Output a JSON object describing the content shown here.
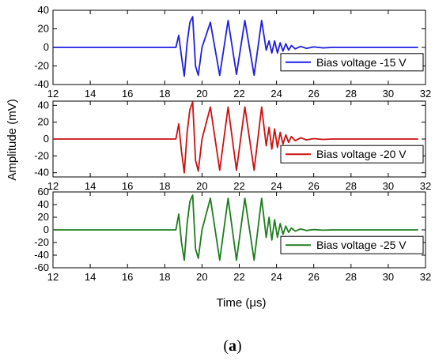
{
  "figure": {
    "caption_open": "(",
    "caption_letter": "a",
    "caption_close": ")",
    "shared_ylabel": "Amplitude (mV)",
    "shared_xlabel": "Time (μs)"
  },
  "chart_data": [
    {
      "type": "line",
      "xlim": [
        12,
        32
      ],
      "ylim": [
        -40,
        40
      ],
      "xticks": [
        12,
        14,
        16,
        18,
        20,
        22,
        24,
        26,
        28,
        30,
        32
      ],
      "yticks": [
        -40,
        -20,
        0,
        20,
        40
      ],
      "grid": false,
      "legend_position": "right",
      "series": [
        {
          "name": "Bias voltage -15 V",
          "color": "#1f1fe0",
          "x": [
            12,
            18.6,
            18.75,
            18.9,
            19.05,
            19.2,
            19.35,
            19.5,
            19.65,
            19.8,
            20.0,
            20.45,
            20.95,
            21.4,
            21.85,
            22.3,
            22.8,
            23.2,
            23.45,
            23.6,
            23.75,
            23.9,
            24.05,
            24.2,
            24.35,
            24.5,
            24.65,
            24.8,
            25.0,
            25.3,
            25.6,
            26.0,
            26.5,
            27.0,
            28.0,
            30.0,
            31.6
          ],
          "y": [
            0,
            0,
            13,
            -10,
            -31,
            5,
            27,
            33,
            -20,
            -30,
            0,
            27,
            -30,
            29,
            -29,
            29,
            -30,
            29,
            -3,
            7,
            -6,
            7,
            -6,
            5,
            -4,
            4,
            -3,
            2,
            -1.5,
            1,
            -1,
            0.5,
            -0.5,
            0,
            0,
            0,
            0
          ]
        }
      ]
    },
    {
      "type": "line",
      "xlim": [
        12,
        32
      ],
      "ylim": [
        -45,
        45
      ],
      "xticks": [
        12,
        14,
        16,
        18,
        20,
        22,
        24,
        26,
        28,
        30,
        32
      ],
      "yticks": [
        -40,
        -20,
        0,
        20,
        40
      ],
      "grid": false,
      "legend_position": "right",
      "series": [
        {
          "name": "Bias voltage -20 V",
          "color": "#cc1111",
          "x": [
            12,
            18.6,
            18.75,
            18.9,
            19.05,
            19.2,
            19.35,
            19.5,
            19.65,
            19.8,
            20.0,
            20.45,
            20.95,
            21.4,
            21.85,
            22.3,
            22.8,
            23.2,
            23.45,
            23.6,
            23.75,
            23.9,
            24.05,
            24.2,
            24.35,
            24.5,
            24.65,
            24.8,
            25.0,
            25.3,
            25.6,
            26.0,
            26.5,
            27.0,
            28.0,
            30.0,
            31.6
          ],
          "y": [
            0,
            0,
            18,
            -15,
            -40,
            8,
            35,
            44,
            -25,
            -38,
            0,
            38,
            -37,
            38,
            -37,
            38,
            -37,
            38,
            -8,
            14,
            -12,
            12,
            -10,
            8,
            -6,
            5,
            -4,
            3,
            -2,
            1.5,
            -1,
            0.5,
            -0.5,
            0,
            0,
            0,
            0
          ]
        }
      ]
    },
    {
      "type": "line",
      "xlim": [
        12,
        32
      ],
      "ylim": [
        -60,
        60
      ],
      "xticks": [
        12,
        14,
        16,
        18,
        20,
        22,
        24,
        26,
        28,
        30,
        32
      ],
      "yticks": [
        -60,
        -40,
        -20,
        0,
        20,
        40,
        60
      ],
      "grid": false,
      "legend_position": "right",
      "series": [
        {
          "name": "Bias voltage -25 V",
          "color": "#1e7d1e",
          "x": [
            12,
            18.6,
            18.75,
            18.9,
            19.05,
            19.2,
            19.35,
            19.5,
            19.65,
            19.8,
            20.0,
            20.45,
            20.95,
            21.4,
            21.85,
            22.3,
            22.8,
            23.2,
            23.45,
            23.6,
            23.75,
            23.9,
            24.05,
            24.2,
            24.35,
            24.5,
            24.65,
            24.8,
            25.0,
            25.3,
            25.6,
            26.0,
            26.5,
            27.0,
            28.0,
            30.0,
            31.6
          ],
          "y": [
            0,
            0,
            25,
            -20,
            -48,
            10,
            45,
            55,
            -30,
            -45,
            0,
            50,
            -48,
            50,
            -48,
            50,
            -48,
            50,
            -12,
            20,
            -16,
            16,
            -12,
            10,
            -7,
            6,
            -4,
            3,
            -2,
            1.5,
            -1,
            0.5,
            -0.5,
            0,
            0,
            0,
            0
          ]
        }
      ]
    }
  ]
}
